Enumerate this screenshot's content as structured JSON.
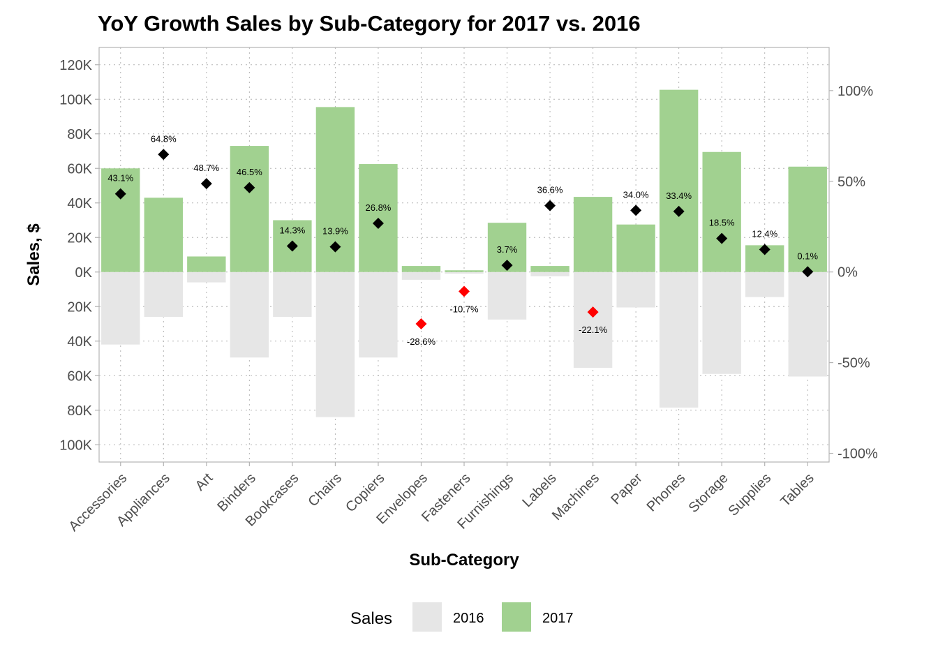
{
  "chart_data": {
    "type": "bar",
    "title": "YoY Growth Sales by Sub-Category for 2017 vs. 2016",
    "xlabel": "Sub-Category",
    "ylabel": "Sales, $",
    "categories": [
      "Accessories",
      "Appliances",
      "Art",
      "Binders",
      "Bookcases",
      "Chairs",
      "Copiers",
      "Envelopes",
      "Fasteners",
      "Furnishings",
      "Labels",
      "Machines",
      "Paper",
      "Phones",
      "Storage",
      "Supplies",
      "Tables"
    ],
    "series": [
      {
        "name": "2016",
        "color": "#e6e6e6",
        "values": [
          42000,
          26000,
          6000,
          49500,
          26000,
          84000,
          49500,
          4500,
          1000,
          27500,
          2500,
          55500,
          20500,
          78500,
          59000,
          14500,
          60500
        ]
      },
      {
        "name": "2017",
        "color": "#a1d190",
        "values": [
          60000,
          43000,
          9000,
          73000,
          30000,
          95500,
          62500,
          3500,
          1000,
          28500,
          3500,
          43500,
          27500,
          105500,
          69500,
          15500,
          61000
        ]
      }
    ],
    "growth": {
      "values": [
        43.1,
        64.8,
        48.7,
        46.5,
        14.3,
        13.9,
        26.8,
        -28.6,
        -10.7,
        3.7,
        36.6,
        -22.1,
        34.0,
        33.4,
        18.5,
        12.4,
        0.1
      ],
      "labels": [
        "43.1%",
        "64.8%",
        "48.7%",
        "46.5%",
        "14.3%",
        "13.9%",
        "26.8%",
        "-28.6%",
        "-10.7%",
        "3.7%",
        "36.6%",
        "-22.1%",
        "34.0%",
        "33.4%",
        "18.5%",
        "12.4%",
        "0.1%"
      ],
      "positive_color": "#000000",
      "negative_color": "#ff0000"
    },
    "y_left": {
      "ticks": [
        120000,
        100000,
        80000,
        60000,
        40000,
        20000,
        0,
        -20000,
        -40000,
        -60000,
        -80000,
        -100000
      ],
      "tick_labels": [
        "120K",
        "100K",
        "80K",
        "60K",
        "40K",
        "20K",
        "0K",
        "20K",
        "40K",
        "60K",
        "80K",
        "100K"
      ],
      "ylim": [
        -110000,
        130000
      ]
    },
    "y_right": {
      "ticks": [
        100,
        50,
        0,
        -50,
        -100
      ],
      "tick_labels": [
        "100%",
        "50%",
        "0%",
        "-50%",
        "-100%"
      ],
      "ylim": [
        -104.8,
        123.8
      ]
    },
    "grid": true,
    "legend": {
      "title": "Sales",
      "position": "bottom",
      "entries": [
        "2016",
        "2017"
      ]
    }
  }
}
